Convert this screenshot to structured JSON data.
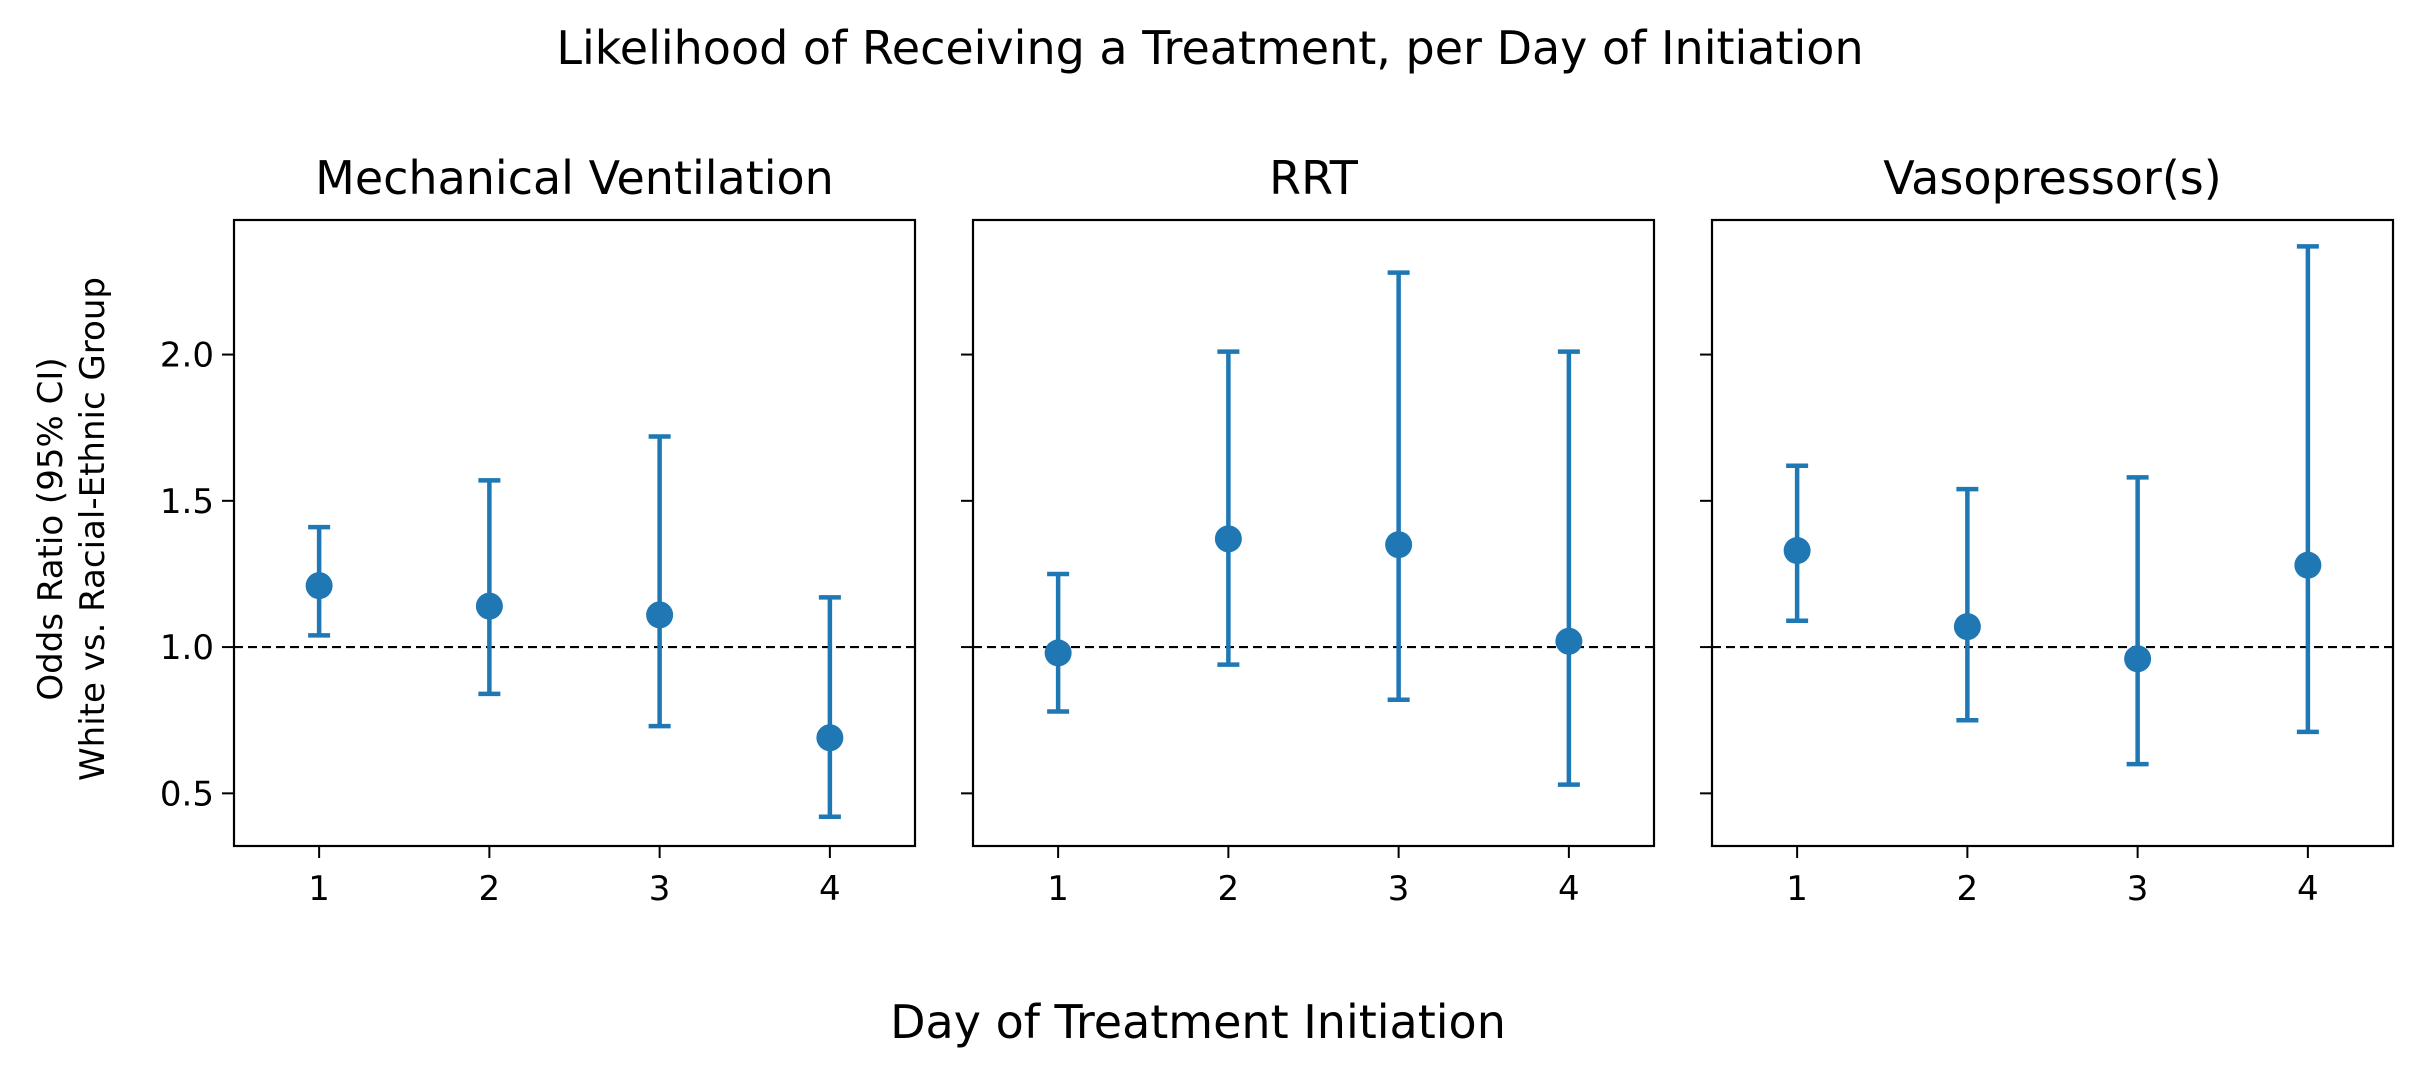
{
  "chart_data": {
    "type": "scatter",
    "title": "Likelihood of Receiving a Treatment, per Day of Initiation",
    "xlabel": "Day of Treatment Initiation",
    "ylabel_lines": [
      "Odds Ratio (95% CI)",
      "White vs. Racial-Ethnic Group"
    ],
    "shared_y": true,
    "xlim": [
      0.5,
      4.5
    ],
    "ylim": [
      0.32,
      2.46
    ],
    "x_ticks": [
      1,
      2,
      3,
      4
    ],
    "y_ticks": [
      "0.5",
      "1.0",
      "1.5",
      "2.0"
    ],
    "reference_line": 1.0,
    "marker_color": "#1f77b4",
    "panels": [
      {
        "title": "Mechanical Ventilation",
        "points": [
          {
            "x": 1,
            "y": 1.21,
            "lower": 1.04,
            "upper": 1.41
          },
          {
            "x": 2,
            "y": 1.14,
            "lower": 0.84,
            "upper": 1.57
          },
          {
            "x": 3,
            "y": 1.11,
            "lower": 0.73,
            "upper": 1.72
          },
          {
            "x": 4,
            "y": 0.69,
            "lower": 0.42,
            "upper": 1.17
          }
        ]
      },
      {
        "title": "RRT",
        "points": [
          {
            "x": 1,
            "y": 0.98,
            "lower": 0.78,
            "upper": 1.25
          },
          {
            "x": 2,
            "y": 1.37,
            "lower": 0.94,
            "upper": 2.01
          },
          {
            "x": 3,
            "y": 1.35,
            "lower": 0.82,
            "upper": 2.28
          },
          {
            "x": 4,
            "y": 1.02,
            "lower": 0.53,
            "upper": 2.01
          }
        ]
      },
      {
        "title": "Vasopressor(s)",
        "points": [
          {
            "x": 1,
            "y": 1.33,
            "lower": 1.09,
            "upper": 1.62
          },
          {
            "x": 2,
            "y": 1.07,
            "lower": 0.75,
            "upper": 1.54
          },
          {
            "x": 3,
            "y": 0.96,
            "lower": 0.6,
            "upper": 1.58
          },
          {
            "x": 4,
            "y": 1.28,
            "lower": 0.71,
            "upper": 2.37
          }
        ]
      }
    ]
  }
}
